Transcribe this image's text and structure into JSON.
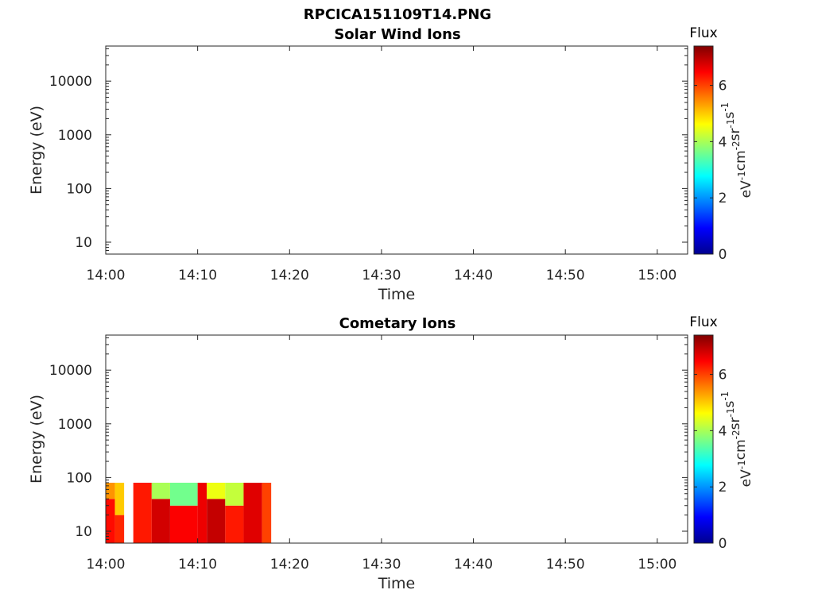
{
  "figure_title": "RPCICA151109T14.PNG",
  "colorbar": {
    "title": "Flux",
    "unit_parts": [
      "eV",
      "-1",
      "cm",
      "-2",
      "sr",
      "-1",
      "s",
      "-1"
    ],
    "ticks": [
      "0",
      "2",
      "4",
      "6"
    ],
    "range": [
      0,
      7.4
    ],
    "colormap": "jet"
  },
  "chart_data": [
    {
      "type": "heatmap",
      "title": "Solar Wind Ions",
      "xlabel": "Time",
      "ylabel": "Energy (eV)",
      "x_ticks": [
        "14:00",
        "14:10",
        "14:20",
        "14:30",
        "14:40",
        "14:50",
        "15:00"
      ],
      "x_range_minutes": [
        0,
        63.3
      ],
      "y_ticks": [
        "10",
        "100",
        "1000",
        "10000"
      ],
      "y_scale": "log",
      "y_range": [
        6,
        45000
      ],
      "data": []
    },
    {
      "type": "heatmap",
      "title": "Cometary Ions",
      "xlabel": "Time",
      "ylabel": "Energy (eV)",
      "x_ticks": [
        "14:00",
        "14:10",
        "14:20",
        "14:30",
        "14:40",
        "14:50",
        "15:00"
      ],
      "x_range_minutes": [
        0,
        63.3
      ],
      "y_ticks": [
        "10",
        "100",
        "1000",
        "10000"
      ],
      "y_scale": "log",
      "y_range": [
        6,
        45000
      ],
      "data_time_span": [
        "14:00",
        "14:18"
      ],
      "data_energy_span": [
        6,
        80
      ],
      "data": [
        {
          "t": [
            "14:00",
            "14:01"
          ],
          "e": [
            6,
            40
          ],
          "flux": 6.4
        },
        {
          "t": [
            "14:00",
            "14:01"
          ],
          "e": [
            40,
            80
          ],
          "flux": 5.4
        },
        {
          "t": [
            "14:01",
            "14:02"
          ],
          "e": [
            6,
            20
          ],
          "flux": 6.2
        },
        {
          "t": [
            "14:01",
            "14:02"
          ],
          "e": [
            20,
            80
          ],
          "flux": 5.0
        },
        {
          "t": [
            "14:03",
            "14:05"
          ],
          "e": [
            6,
            80
          ],
          "flux": 6.3
        },
        {
          "t": [
            "14:05",
            "14:07"
          ],
          "e": [
            6,
            40
          ],
          "flux": 6.8
        },
        {
          "t": [
            "14:05",
            "14:07"
          ],
          "e": [
            40,
            80
          ],
          "flux": 4.0
        },
        {
          "t": [
            "14:07",
            "14:10"
          ],
          "e": [
            6,
            30
          ],
          "flux": 6.5
        },
        {
          "t": [
            "14:07",
            "14:10"
          ],
          "e": [
            30,
            80
          ],
          "flux": 3.6
        },
        {
          "t": [
            "14:10",
            "14:11"
          ],
          "e": [
            6,
            80
          ],
          "flux": 6.6
        },
        {
          "t": [
            "14:11",
            "14:13"
          ],
          "e": [
            6,
            40
          ],
          "flux": 6.9
        },
        {
          "t": [
            "14:11",
            "14:13"
          ],
          "e": [
            40,
            80
          ],
          "flux": 4.5
        },
        {
          "t": [
            "14:13",
            "14:15"
          ],
          "e": [
            6,
            30
          ],
          "flux": 6.3
        },
        {
          "t": [
            "14:13",
            "14:15"
          ],
          "e": [
            30,
            80
          ],
          "flux": 4.2
        },
        {
          "t": [
            "14:15",
            "14:17"
          ],
          "e": [
            6,
            80
          ],
          "flux": 6.7
        },
        {
          "t": [
            "14:17",
            "14:18"
          ],
          "e": [
            6,
            80
          ],
          "flux": 6.0
        }
      ]
    }
  ]
}
